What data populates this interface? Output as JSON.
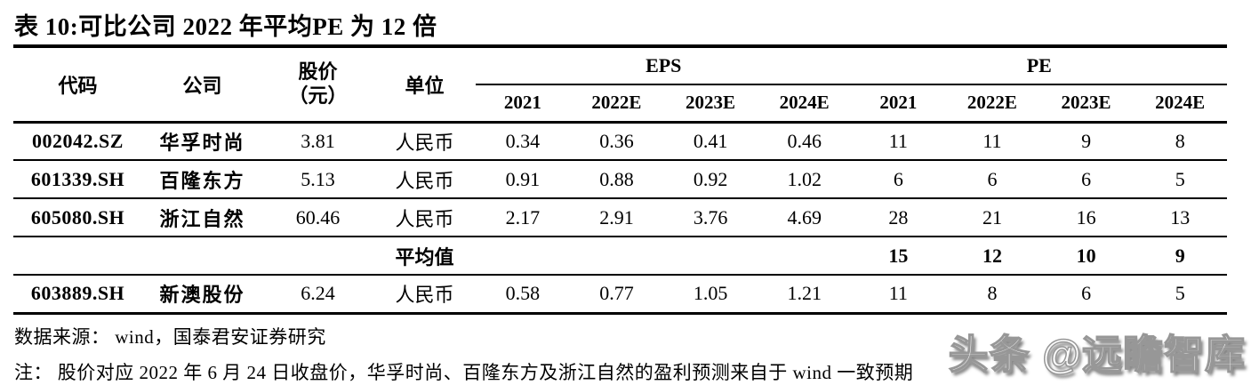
{
  "title": "表 10:可比公司 2022 年平均PE 为 12 倍",
  "colors": {
    "background": "#ffffff",
    "text": "#000000",
    "rule": "#000000",
    "watermark_gray": "#979797"
  },
  "table": {
    "headers": {
      "code": "代码",
      "company": "公司",
      "price_line1": "股价",
      "price_line2": "（元）",
      "unit": "单位",
      "eps_group": "EPS",
      "pe_group": "PE",
      "years": [
        "2021",
        "2022E",
        "2023E",
        "2024E"
      ]
    },
    "rows": [
      {
        "code": "002042.SZ",
        "company": "华孚时尚",
        "price": "3.81",
        "unit": "人民币",
        "eps": [
          "0.34",
          "0.36",
          "0.41",
          "0.46"
        ],
        "pe": [
          "11",
          "11",
          "9",
          "8"
        ]
      },
      {
        "code": "601339.SH",
        "company": "百隆东方",
        "price": "5.13",
        "unit": "人民币",
        "eps": [
          "0.91",
          "0.88",
          "0.92",
          "1.02"
        ],
        "pe": [
          "6",
          "6",
          "6",
          "5"
        ]
      },
      {
        "code": "605080.SH",
        "company": "浙江自然",
        "price": "60.46",
        "unit": "人民币",
        "eps": [
          "2.17",
          "2.91",
          "3.76",
          "4.69"
        ],
        "pe": [
          "28",
          "21",
          "16",
          "13"
        ]
      }
    ],
    "average_row": {
      "label": "平均值",
      "pe": [
        "15",
        "12",
        "10",
        "9"
      ]
    },
    "extra_row": {
      "code": "603889.SH",
      "company": "新澳股份",
      "price": "6.24",
      "unit": "人民币",
      "eps": [
        "0.58",
        "0.77",
        "1.05",
        "1.21"
      ],
      "pe": [
        "11",
        "8",
        "6",
        "5"
      ]
    }
  },
  "footer": {
    "source": "数据来源： wind，国泰君安证券研究",
    "note": "注： 股价对应 2022 年 6 月 24 日收盘价，华孚时尚、百隆东方及浙江自然的盈利预测来自于 wind 一致预期"
  },
  "watermark": "头条 @远瞻智库"
}
